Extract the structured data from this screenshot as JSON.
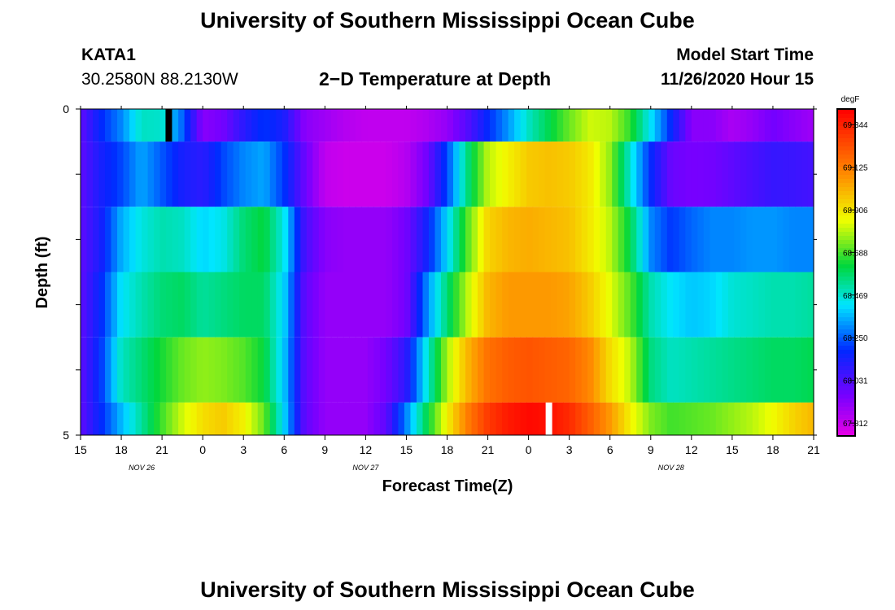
{
  "header": {
    "title": "University of Southern Mississippi Ocean Cube",
    "station_id": "KATA1",
    "station_coords": "30.2580N 88.2130W",
    "model_start_label": "Model Start Time",
    "model_start_value": "11/26/2020 Hour 15"
  },
  "footer": {
    "title": "University of Southern Mississippi Ocean Cube"
  },
  "chart_data": {
    "type": "heatmap",
    "title": "2−D Temperature at Depth",
    "xlabel": "Forecast Time(Z)",
    "ylabel": "Depth (ft)",
    "colorbar_unit": "degF",
    "x_hours": [
      0,
      3,
      6,
      9,
      12,
      15,
      18,
      21,
      24,
      27,
      30,
      33,
      36,
      39,
      42,
      45,
      48,
      51,
      54
    ],
    "x_tick_labels": [
      "15",
      "18",
      "21",
      "0",
      "3",
      "6",
      "9",
      "12",
      "15",
      "18",
      "21",
      "0",
      "3",
      "6",
      "9",
      "12",
      "15",
      "18",
      "21"
    ],
    "date_labels": [
      {
        "label": "NOV  26",
        "hour": 4.5
      },
      {
        "label": "NOV  27",
        "hour": 21
      },
      {
        "label": "NOV  28",
        "hour": 43.5
      }
    ],
    "y_tick_labels": [
      "0",
      "5"
    ],
    "ylim": [
      0,
      5
    ],
    "depth_rows": [
      0.0,
      0.5,
      1.5,
      2.5,
      3.5,
      4.5
    ],
    "row_edges": [
      0,
      0.5,
      1.5,
      2.5,
      3.5,
      4.5,
      5.0
    ],
    "colorbar_ticks": [
      "69.344",
      "69.125",
      "68.906",
      "68.688",
      "68.469",
      "68.250",
      "68.031",
      "67.812"
    ],
    "vmin": 67.75,
    "vmax": 69.42,
    "values": [
      [
        68.0,
        68.18,
        68.3,
        68.48,
        68.47,
        68.26,
        67.92,
        67.96,
        68.1,
        68.2,
        68.13,
        67.92,
        67.88,
        67.84,
        67.82,
        67.82,
        67.82,
        67.85,
        67.9,
        68.02,
        68.18,
        68.32,
        68.48,
        68.6,
        68.72,
        68.82,
        68.8,
        68.66,
        68.42,
        68.18,
        67.92,
        67.92,
        67.86,
        67.9,
        67.96,
        67.92,
        67.88
      ],
      [
        68.0,
        68.14,
        68.22,
        68.34,
        68.24,
        68.14,
        68.1,
        68.22,
        68.3,
        68.34,
        68.2,
        67.98,
        67.82,
        67.8,
        67.8,
        67.8,
        67.84,
        67.96,
        68.22,
        68.55,
        68.8,
        68.88,
        68.96,
        68.98,
        68.96,
        68.9,
        68.76,
        68.46,
        68.18,
        67.98,
        67.95,
        67.96,
        68.0,
        68.04,
        68.08,
        68.07,
        68.05
      ],
      [
        68.0,
        68.14,
        68.35,
        68.45,
        68.5,
        68.48,
        68.4,
        68.44,
        68.56,
        68.62,
        68.44,
        68.05,
        67.92,
        67.9,
        67.9,
        67.9,
        67.96,
        68.15,
        68.4,
        68.7,
        68.94,
        69.0,
        69.02,
        69.0,
        68.98,
        68.9,
        68.8,
        68.6,
        68.3,
        68.2,
        68.26,
        68.3,
        68.3,
        68.32,
        68.32,
        68.3,
        68.3
      ],
      [
        68.0,
        68.18,
        68.42,
        68.5,
        68.56,
        68.58,
        68.52,
        68.55,
        68.58,
        68.58,
        68.4,
        68.0,
        67.9,
        67.9,
        67.9,
        67.9,
        67.96,
        68.3,
        68.56,
        68.8,
        69.0,
        69.06,
        69.06,
        69.06,
        69.04,
        68.96,
        68.84,
        68.7,
        68.5,
        68.42,
        68.38,
        68.4,
        68.46,
        68.48,
        68.5,
        68.5,
        68.52
      ],
      [
        68.0,
        68.2,
        68.48,
        68.56,
        68.64,
        68.72,
        68.76,
        68.74,
        68.7,
        68.62,
        68.38,
        68.0,
        67.9,
        67.9,
        67.9,
        67.96,
        68.1,
        68.45,
        68.78,
        69.0,
        69.15,
        69.2,
        69.22,
        69.2,
        69.18,
        69.1,
        68.92,
        68.8,
        68.55,
        68.48,
        68.5,
        68.52,
        68.54,
        68.56,
        68.58,
        68.58,
        68.6
      ],
      [
        68.0,
        68.18,
        68.36,
        68.52,
        68.68,
        68.82,
        68.92,
        68.96,
        68.88,
        68.72,
        68.4,
        68.0,
        67.9,
        67.9,
        67.9,
        68.0,
        68.3,
        68.6,
        68.88,
        69.12,
        69.28,
        69.36,
        69.4,
        69.38,
        69.32,
        69.2,
        69.06,
        68.88,
        68.74,
        68.68,
        68.7,
        68.72,
        68.76,
        68.8,
        68.86,
        68.94,
        69.0
      ]
    ],
    "markers": [
      {
        "hour": 6.5,
        "depth_start": 0.0,
        "depth_end": 0.5,
        "color": "#000000"
      },
      {
        "hour": 34.5,
        "depth_start": 4.5,
        "depth_end": 5.0,
        "color": "#ffffff"
      }
    ]
  }
}
